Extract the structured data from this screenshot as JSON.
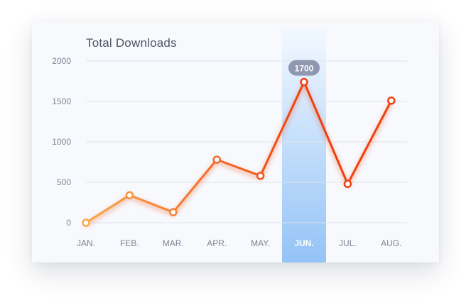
{
  "chart_data": {
    "type": "line",
    "title": "Total Downloads",
    "xlabel": "",
    "ylabel": "",
    "categories": [
      "JAN.",
      "FEB.",
      "MAR.",
      "APR.",
      "MAY.",
      "JUN.",
      "JUL.",
      "AUG."
    ],
    "series": [
      {
        "name": "Total Downloads",
        "values": [
          0,
          340,
          130,
          780,
          580,
          1740,
          480,
          1510
        ]
      }
    ],
    "ylim": [
      0,
      2000
    ],
    "yticks": [
      0,
      500,
      1000,
      1500,
      2000
    ],
    "highlight": {
      "category": "JUN.",
      "label": "1700"
    },
    "grid": true,
    "colors": {
      "line_start": "#f8a94a",
      "line_end": "#ef3f10",
      "highlight_top": "#f3f8ff",
      "highlight_bottom": "#94c3f6",
      "tooltip_bg": "#8f97b1",
      "grid": "#dfe4ec",
      "tick_text": "#7d8594",
      "highlight_tick_text": "#ffffff"
    }
  }
}
